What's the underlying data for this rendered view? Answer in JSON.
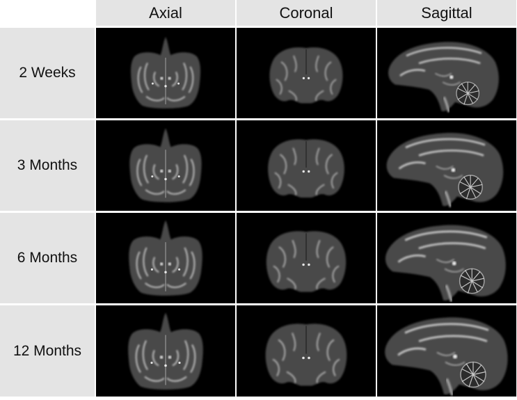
{
  "columns": [
    {
      "label": "Axial"
    },
    {
      "label": "Coronal"
    },
    {
      "label": "Sagittal"
    }
  ],
  "rows": [
    {
      "label": "2 Weeks"
    },
    {
      "label": "3 Months"
    },
    {
      "label": "6 Months"
    },
    {
      "label": "12 Months"
    }
  ],
  "colors": {
    "header_bg": "#e4e4e4",
    "image_bg": "#000000",
    "tissue_gray": "#4a4a4a",
    "bright_tissue": "#d2d2d2"
  },
  "image_content": "grayscale MRI brain slices (infant macaque)"
}
